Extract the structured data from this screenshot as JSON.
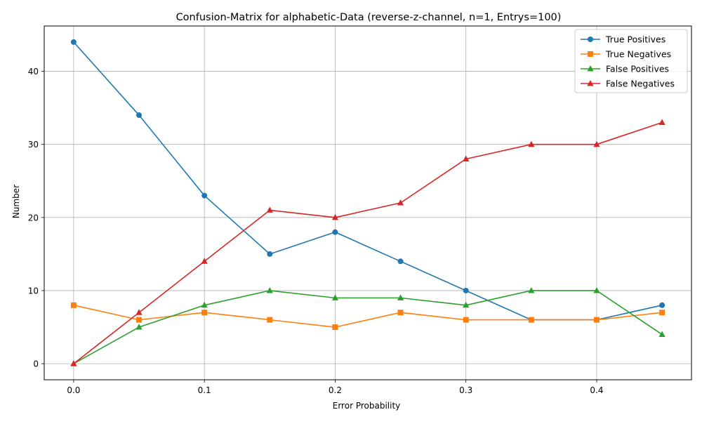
{
  "chart_data": {
    "type": "line",
    "title": "Confusion-Matrix for alphabetic-Data (reverse-z-channel, n=1, Entrys=100)",
    "xlabel": "Error Probability",
    "ylabel": "Number",
    "x": [
      0.0,
      0.05,
      0.1,
      0.15,
      0.2,
      0.25,
      0.3,
      0.35,
      0.4,
      0.45
    ],
    "xlim": [
      -0.0225,
      0.4725
    ],
    "ylim": [
      -2.2,
      46.2
    ],
    "xticks": [
      0.0,
      0.1,
      0.2,
      0.3,
      0.4
    ],
    "xtick_labels": [
      "0.0",
      "0.1",
      "0.2",
      "0.3",
      "0.4"
    ],
    "yticks": [
      0,
      10,
      20,
      30,
      40
    ],
    "ytick_labels": [
      "0",
      "10",
      "20",
      "30",
      "40"
    ],
    "grid": true,
    "legend_position": "top-right",
    "series": [
      {
        "name": "True Positives",
        "color": "#1f77b4",
        "marker": "circle",
        "values": [
          44,
          34,
          23,
          15,
          18,
          14,
          10,
          6,
          6,
          8
        ]
      },
      {
        "name": "True Negatives",
        "color": "#ff7f0e",
        "marker": "square",
        "values": [
          8,
          6,
          7,
          6,
          5,
          7,
          6,
          6,
          6,
          7
        ]
      },
      {
        "name": "False Positives",
        "color": "#2ca02c",
        "marker": "triangle",
        "values": [
          0,
          5,
          8,
          10,
          9,
          9,
          8,
          10,
          10,
          4
        ]
      },
      {
        "name": "False Negatives",
        "color": "#d62728",
        "marker": "triangle",
        "values": [
          0,
          7,
          14,
          21,
          20,
          22,
          28,
          30,
          30,
          33
        ]
      }
    ]
  }
}
